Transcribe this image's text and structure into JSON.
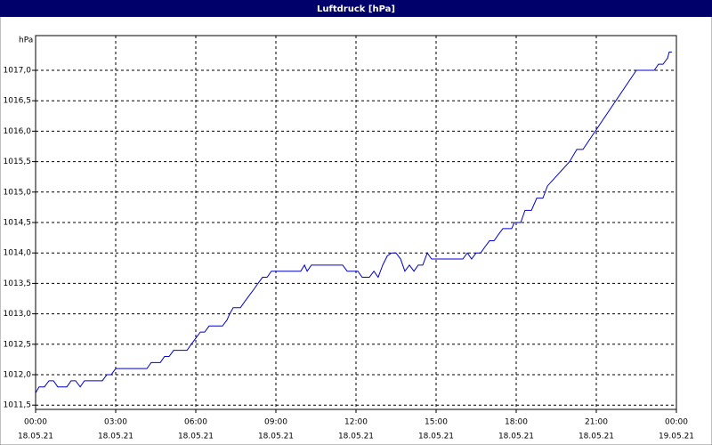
{
  "chart_data": {
    "type": "line",
    "title": "Luftdruck [hPa]",
    "y_unit_label": "hPa",
    "grid": true,
    "xlim": [
      0,
      24
    ],
    "xticks": [
      {
        "value": 0,
        "label": "00:00"
      },
      {
        "value": 3,
        "label": "03:00"
      },
      {
        "value": 6,
        "label": "06:00"
      },
      {
        "value": 9,
        "label": "09:00"
      },
      {
        "value": 12,
        "label": "12:00"
      },
      {
        "value": 15,
        "label": "15:00"
      },
      {
        "value": 18,
        "label": "18:00"
      },
      {
        "value": 21,
        "label": "21:00"
      },
      {
        "value": 24,
        "label": "00:00"
      }
    ],
    "xtick_dates": [
      "18.05.21",
      "18.05.21",
      "18.05.21",
      "18.05.21",
      "18.05.21",
      "18.05.21",
      "18.05.21",
      "18.05.21",
      "19.05.21"
    ],
    "ylim": [
      1011.43,
      1017.57
    ],
    "yticks": [
      {
        "value": 1011.5,
        "label": "1011,5"
      },
      {
        "value": 1012,
        "label": "1012,0"
      },
      {
        "value": 1012.5,
        "label": "1012,5"
      },
      {
        "value": 1013,
        "label": "1013,0"
      },
      {
        "value": 1013.5,
        "label": "1013,5"
      },
      {
        "value": 1014,
        "label": "1014,0"
      },
      {
        "value": 1014.5,
        "label": "1014,5"
      },
      {
        "value": 1015,
        "label": "1015,0"
      },
      {
        "value": 1015.5,
        "label": "1015,5"
      },
      {
        "value": 1016,
        "label": "1016,0"
      },
      {
        "value": 1016.5,
        "label": "1016,5"
      },
      {
        "value": 1017,
        "label": "1017,0"
      }
    ],
    "series": [
      {
        "color": "#0000cc",
        "x": [
          0,
          0.13,
          0.33,
          0.5,
          0.67,
          0.83,
          1.17,
          1.33,
          1.5,
          1.67,
          1.83,
          2.5,
          2.67,
          2.83,
          3.0,
          4.17,
          4.33,
          4.67,
          4.83,
          5.0,
          5.17,
          5.67,
          5.83,
          6.0,
          6.17,
          6.33,
          6.5,
          7.0,
          7.17,
          7.27,
          7.4,
          7.67,
          7.83,
          8.0,
          8.17,
          8.33,
          8.5,
          8.67,
          8.83,
          9.93,
          10.07,
          10.17,
          10.33,
          11.5,
          11.67,
          12.07,
          12.23,
          12.5,
          12.67,
          12.83,
          13.0,
          13.17,
          13.33,
          13.5,
          13.67,
          13.83,
          14.0,
          14.17,
          14.33,
          14.5,
          14.67,
          14.83,
          15.0,
          16.0,
          16.17,
          16.33,
          16.5,
          16.67,
          16.83,
          17.0,
          17.17,
          17.33,
          17.5,
          17.83,
          17.93,
          18.17,
          18.33,
          18.57,
          18.77,
          19.0,
          19.17,
          20.0,
          20.27,
          20.5,
          22.5,
          23.17,
          23.33,
          23.5,
          23.67,
          23.73,
          23.83
        ],
        "values": [
          1011.7,
          1011.8,
          1011.8,
          1011.9,
          1011.9,
          1011.8,
          1011.8,
          1011.9,
          1011.9,
          1011.8,
          1011.9,
          1011.9,
          1012.0,
          1012.0,
          1012.1,
          1012.1,
          1012.2,
          1012.2,
          1012.3,
          1012.3,
          1012.4,
          1012.4,
          1012.5,
          1012.6,
          1012.7,
          1012.7,
          1012.8,
          1012.8,
          1012.9,
          1013.0,
          1013.1,
          1013.1,
          1013.2,
          1013.3,
          1013.4,
          1013.5,
          1013.6,
          1013.6,
          1013.7,
          1013.7,
          1013.8,
          1013.7,
          1013.8,
          1013.8,
          1013.7,
          1013.7,
          1013.6,
          1013.6,
          1013.7,
          1013.6,
          1013.8,
          1013.95,
          1014.0,
          1014.0,
          1013.9,
          1013.7,
          1013.8,
          1013.7,
          1013.8,
          1013.8,
          1014.0,
          1013.9,
          1013.9,
          1013.9,
          1014.0,
          1013.9,
          1014.0,
          1014.0,
          1014.1,
          1014.2,
          1014.2,
          1014.3,
          1014.4,
          1014.4,
          1014.5,
          1014.5,
          1014.7,
          1014.7,
          1014.9,
          1014.9,
          1015.1,
          1015.5,
          1015.7,
          1015.7,
          1017.0,
          1017.0,
          1017.1,
          1017.1,
          1017.2,
          1017.3,
          1017.3
        ]
      }
    ]
  }
}
